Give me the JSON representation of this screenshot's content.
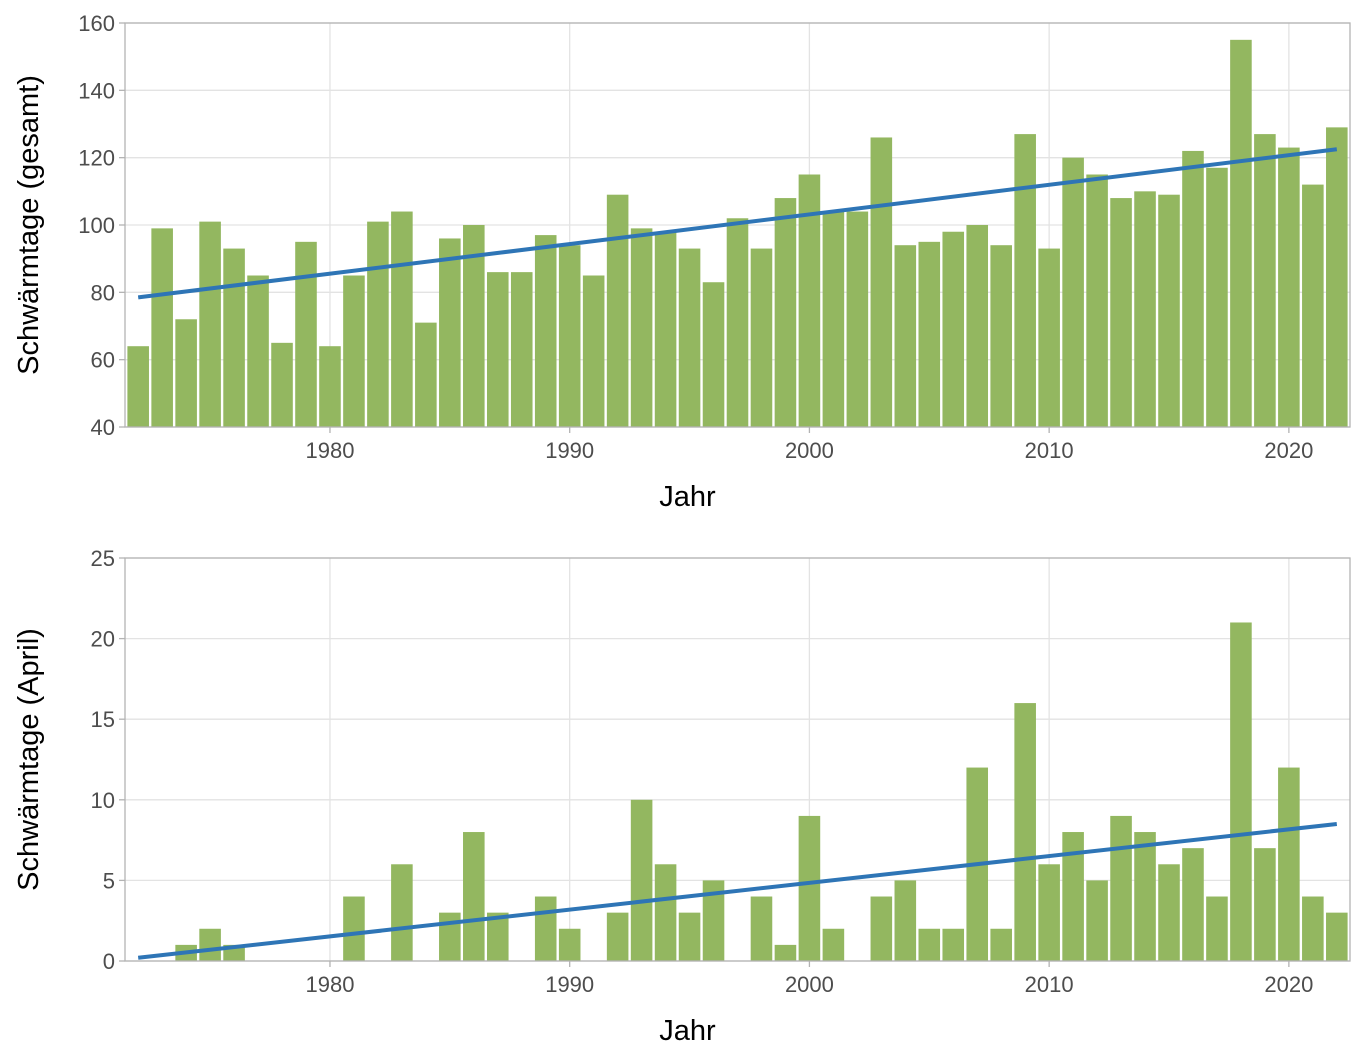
{
  "chart_data": [
    {
      "type": "bar",
      "xlabel": "Jahr",
      "ylabel": "Schwärmtage (gesamt)",
      "color": "#93b760",
      "x": [
        1972,
        1973,
        1974,
        1975,
        1976,
        1977,
        1978,
        1979,
        1980,
        1981,
        1982,
        1983,
        1984,
        1985,
        1986,
        1987,
        1988,
        1989,
        1990,
        1991,
        1992,
        1993,
        1994,
        1995,
        1996,
        1997,
        1998,
        1999,
        2000,
        2001,
        2002,
        2003,
        2004,
        2005,
        2006,
        2007,
        2008,
        2009,
        2010,
        2011,
        2012,
        2013,
        2014,
        2015,
        2016,
        2017,
        2018,
        2019,
        2020,
        2021,
        2022
      ],
      "values": [
        64,
        99,
        72,
        101,
        93,
        85,
        65,
        95,
        64,
        85,
        101,
        104,
        71,
        96,
        100,
        86,
        86,
        97,
        94,
        85,
        109,
        99,
        98,
        93,
        83,
        102,
        93,
        108,
        115,
        104,
        104,
        126,
        94,
        95,
        98,
        100,
        94,
        127,
        93,
        120,
        115,
        108,
        110,
        109,
        122,
        117,
        155,
        127,
        123,
        112,
        129
      ],
      "trend": {
        "color": "#2e75b6",
        "x": [
          1972,
          2022
        ],
        "values": [
          78.5,
          122.5
        ]
      },
      "xlim": [
        1971.45,
        2022.55
      ],
      "xticks": [
        1980,
        1990,
        2000,
        2010,
        2020
      ],
      "ylim": [
        40,
        160
      ],
      "yticks": [
        40,
        60,
        80,
        100,
        120,
        140,
        160
      ],
      "grid": true
    },
    {
      "type": "bar",
      "xlabel": "Jahr",
      "ylabel": "Schwärmtage (April)",
      "color": "#93b760",
      "x": [
        1972,
        1973,
        1974,
        1975,
        1976,
        1977,
        1978,
        1979,
        1980,
        1981,
        1982,
        1983,
        1984,
        1985,
        1986,
        1987,
        1988,
        1989,
        1990,
        1991,
        1992,
        1993,
        1994,
        1995,
        1996,
        1997,
        1998,
        1999,
        2000,
        2001,
        2002,
        2003,
        2004,
        2005,
        2006,
        2007,
        2008,
        2009,
        2010,
        2011,
        2012,
        2013,
        2014,
        2015,
        2016,
        2017,
        2018,
        2019,
        2020,
        2021,
        2022
      ],
      "values": [
        0,
        0,
        1,
        2,
        1,
        0,
        0,
        0,
        0,
        4,
        0,
        6,
        0,
        3,
        8,
        3,
        0,
        4,
        2,
        0,
        3,
        10,
        6,
        3,
        5,
        0,
        4,
        1,
        9,
        2,
        0,
        4,
        5,
        2,
        2,
        12,
        2,
        16,
        6,
        8,
        5,
        9,
        8,
        6,
        7,
        4,
        21,
        7,
        12,
        4,
        3
      ],
      "trend": {
        "color": "#2e75b6",
        "x": [
          1972,
          2022
        ],
        "values": [
          0.2,
          8.5
        ]
      },
      "xlim": [
        1971.45,
        2022.55
      ],
      "xticks": [
        1980,
        1990,
        2000,
        2010,
        2020
      ],
      "ylim": [
        0,
        25
      ],
      "yticks": [
        0,
        5,
        10,
        15,
        20,
        25
      ],
      "grid": true
    }
  ]
}
